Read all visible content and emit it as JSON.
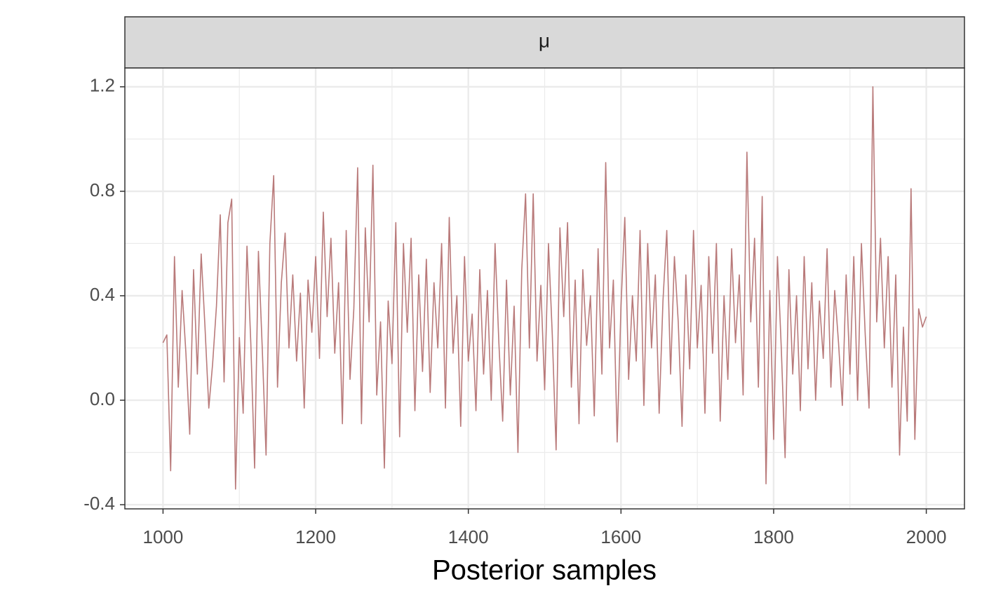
{
  "chart_data": {
    "type": "line",
    "strip_title": "μ",
    "x_label": "Posterior samples",
    "color": "#b97a7a",
    "xlim": [
      950,
      2050
    ],
    "ylim": [
      -0.416,
      1.272
    ],
    "xticks": [
      1000,
      1200,
      1400,
      1600,
      1800,
      2000
    ],
    "yticks": [
      -0.4,
      {
        "value": 0,
        "label": "0.0"
      },
      0.4,
      0.8,
      1.2
    ],
    "x_minor_grid": [
      1100,
      1300,
      1500,
      1700,
      1900
    ],
    "y_minor_grid": [
      -0.2,
      0.2,
      0.6,
      1.0
    ],
    "grid": true,
    "x": [
      1000,
      1005,
      1010,
      1015,
      1020,
      1025,
      1030,
      1035,
      1040,
      1045,
      1050,
      1055,
      1060,
      1065,
      1070,
      1075,
      1080,
      1085,
      1090,
      1095,
      1100,
      1105,
      1110,
      1115,
      1120,
      1125,
      1130,
      1135,
      1140,
      1145,
      1150,
      1155,
      1160,
      1165,
      1170,
      1175,
      1180,
      1185,
      1190,
      1195,
      1200,
      1205,
      1210,
      1215,
      1220,
      1225,
      1230,
      1235,
      1240,
      1245,
      1250,
      1255,
      1260,
      1265,
      1270,
      1275,
      1280,
      1285,
      1290,
      1295,
      1300,
      1305,
      1310,
      1315,
      1320,
      1325,
      1330,
      1335,
      1340,
      1345,
      1350,
      1355,
      1360,
      1365,
      1370,
      1375,
      1380,
      1385,
      1390,
      1395,
      1400,
      1405,
      1410,
      1415,
      1420,
      1425,
      1430,
      1435,
      1440,
      1445,
      1450,
      1455,
      1460,
      1465,
      1470,
      1475,
      1480,
      1485,
      1490,
      1495,
      1500,
      1505,
      1510,
      1515,
      1520,
      1525,
      1530,
      1535,
      1540,
      1545,
      1550,
      1555,
      1560,
      1565,
      1570,
      1575,
      1580,
      1585,
      1590,
      1595,
      1600,
      1605,
      1610,
      1615,
      1620,
      1625,
      1630,
      1635,
      1640,
      1645,
      1650,
      1655,
      1660,
      1665,
      1670,
      1675,
      1680,
      1685,
      1690,
      1695,
      1700,
      1705,
      1710,
      1715,
      1720,
      1725,
      1730,
      1735,
      1740,
      1745,
      1750,
      1755,
      1760,
      1765,
      1770,
      1775,
      1780,
      1785,
      1790,
      1795,
      1800,
      1805,
      1810,
      1815,
      1820,
      1825,
      1830,
      1835,
      1840,
      1845,
      1850,
      1855,
      1860,
      1865,
      1870,
      1875,
      1880,
      1885,
      1890,
      1895,
      1900,
      1905,
      1910,
      1915,
      1920,
      1925,
      1930,
      1935,
      1940,
      1945,
      1950,
      1955,
      1960,
      1965,
      1970,
      1975,
      1980,
      1985,
      1990,
      1995,
      2000
    ],
    "values": [
      0.22,
      0.25,
      -0.27,
      0.55,
      0.05,
      0.42,
      0.18,
      -0.13,
      0.5,
      0.1,
      0.56,
      0.28,
      -0.03,
      0.14,
      0.36,
      0.71,
      0.07,
      0.68,
      0.77,
      -0.34,
      0.24,
      -0.05,
      0.59,
      0.22,
      -0.26,
      0.57,
      0.2,
      -0.21,
      0.6,
      0.86,
      0.05,
      0.45,
      0.64,
      0.2,
      0.48,
      0.15,
      0.41,
      -0.03,
      0.46,
      0.26,
      0.55,
      0.16,
      0.72,
      0.32,
      0.62,
      0.18,
      0.45,
      -0.09,
      0.65,
      0.08,
      0.35,
      0.89,
      -0.09,
      0.66,
      0.3,
      0.9,
      0.02,
      0.3,
      -0.26,
      0.38,
      0.14,
      0.68,
      -0.14,
      0.6,
      0.26,
      0.62,
      -0.04,
      0.48,
      0.11,
      0.54,
      0.03,
      0.45,
      0.2,
      0.6,
      -0.03,
      0.7,
      0.18,
      0.4,
      -0.1,
      0.55,
      0.15,
      0.33,
      -0.04,
      0.5,
      0.1,
      0.42,
      0.0,
      0.6,
      0.22,
      -0.08,
      0.46,
      0.02,
      0.36,
      -0.2,
      0.5,
      0.79,
      0.2,
      0.79,
      0.15,
      0.44,
      0.04,
      0.6,
      0.25,
      -0.19,
      0.66,
      0.32,
      0.68,
      0.05,
      0.46,
      -0.09,
      0.5,
      0.21,
      0.4,
      -0.06,
      0.58,
      0.1,
      0.91,
      0.2,
      0.46,
      -0.16,
      0.36,
      0.7,
      0.08,
      0.4,
      0.15,
      0.65,
      -0.02,
      0.6,
      0.2,
      0.48,
      -0.05,
      0.38,
      0.65,
      0.1,
      0.55,
      0.3,
      -0.1,
      0.48,
      0.12,
      0.65,
      0.2,
      0.44,
      -0.05,
      0.55,
      0.18,
      0.6,
      -0.08,
      0.4,
      0.08,
      0.58,
      0.22,
      0.48,
      0.02,
      0.95,
      0.3,
      0.62,
      0.05,
      0.78,
      -0.32,
      0.42,
      -0.15,
      0.55,
      0.2,
      -0.22,
      0.5,
      0.1,
      0.4,
      -0.04,
      0.55,
      0.12,
      0.45,
      0.0,
      0.38,
      0.16,
      0.58,
      0.05,
      0.42,
      0.22,
      -0.02,
      0.48,
      0.1,
      0.55,
      0.0,
      0.6,
      0.25,
      -0.03,
      1.2,
      0.3,
      0.62,
      0.2,
      0.55,
      0.05,
      0.48,
      -0.21,
      0.28,
      -0.08,
      0.81,
      -0.15,
      0.35,
      0.28,
      0.32
    ]
  }
}
